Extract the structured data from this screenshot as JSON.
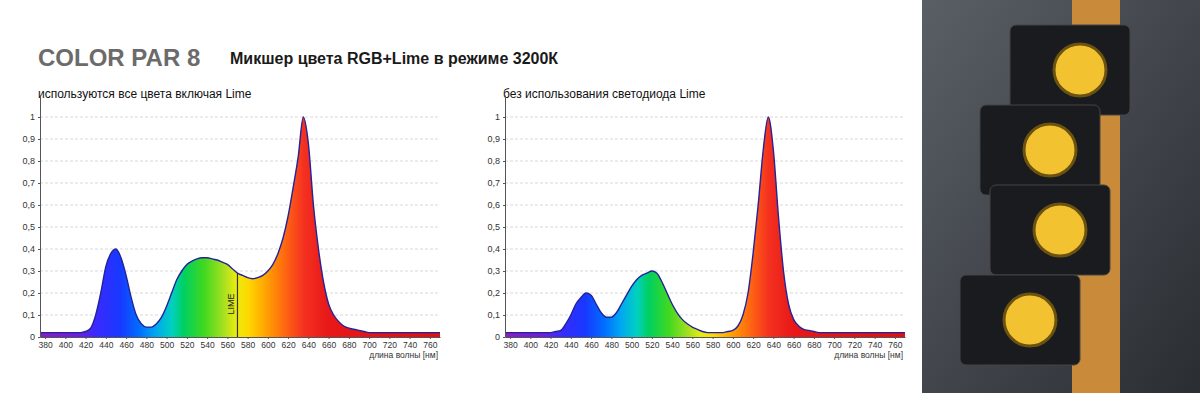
{
  "header": {
    "title": "COLOR PAR 8",
    "subtitle": "Микшер цвета RGB+Lime в режиме 3200К"
  },
  "chart_data": [
    {
      "type": "area",
      "title": "используются все цвета включая Lime",
      "x_label": "длина волны [нм]",
      "x": [
        375,
        380,
        385,
        390,
        395,
        400,
        405,
        410,
        415,
        420,
        425,
        430,
        435,
        440,
        445,
        450,
        455,
        460,
        465,
        470,
        475,
        480,
        485,
        490,
        495,
        500,
        505,
        510,
        515,
        520,
        525,
        530,
        535,
        540,
        545,
        550,
        555,
        560,
        565,
        570,
        575,
        580,
        585,
        590,
        595,
        600,
        605,
        610,
        615,
        620,
        625,
        630,
        635,
        640,
        645,
        650,
        655,
        660,
        665,
        670,
        675,
        680,
        685,
        690,
        695,
        700,
        705,
        710,
        715,
        720,
        725,
        730,
        735,
        740,
        745,
        750,
        755,
        760,
        765,
        770
      ],
      "series": [
        {
          "color": "spectrum",
          "values": [
            0.02,
            0.02,
            0.02,
            0.02,
            0.02,
            0.02,
            0.02,
            0.02,
            0.02,
            0.025,
            0.04,
            0.1,
            0.2,
            0.32,
            0.38,
            0.4,
            0.36,
            0.28,
            0.18,
            0.1,
            0.06,
            0.045,
            0.045,
            0.06,
            0.09,
            0.14,
            0.2,
            0.26,
            0.3,
            0.33,
            0.345,
            0.355,
            0.36,
            0.36,
            0.355,
            0.35,
            0.34,
            0.33,
            0.31,
            0.29,
            0.28,
            0.27,
            0.265,
            0.27,
            0.28,
            0.3,
            0.33,
            0.38,
            0.45,
            0.55,
            0.68,
            0.82,
            1.0,
            0.88,
            0.6,
            0.4,
            0.25,
            0.15,
            0.1,
            0.07,
            0.05,
            0.04,
            0.035,
            0.03,
            0.025,
            0.02,
            0.02,
            0.02,
            0.02,
            0.02,
            0.02,
            0.02,
            0.02,
            0.02,
            0.02,
            0.02,
            0.02,
            0.02,
            0.02,
            0.02
          ]
        }
      ],
      "annotations": [
        {
          "text": "LIME",
          "x": 570
        }
      ],
      "xlim": [
        375,
        770
      ],
      "xticks": [
        380,
        400,
        420,
        440,
        460,
        480,
        500,
        520,
        540,
        560,
        580,
        600,
        620,
        640,
        660,
        680,
        700,
        720,
        740,
        760
      ],
      "ylim": [
        0,
        1.1
      ],
      "yticks": [
        0,
        {
          "value": 0.1,
          "label": "0,1"
        },
        {
          "value": 0.2,
          "label": "0,2"
        },
        {
          "value": 0.3,
          "label": "0,3"
        },
        {
          "value": 0.4,
          "label": "0,4"
        },
        {
          "value": 0.5,
          "label": "0,5"
        },
        {
          "value": 0.6,
          "label": "0,6"
        },
        {
          "value": 0.7,
          "label": "0,7"
        },
        {
          "value": 0.8,
          "label": "0,8"
        },
        {
          "value": 0.9,
          "label": "0,9"
        },
        1
      ],
      "grid": true
    },
    {
      "type": "area",
      "title": "без использования светодиода Lime",
      "x_label": "длина волны [нм]",
      "x": [
        375,
        380,
        385,
        390,
        395,
        400,
        405,
        410,
        415,
        420,
        425,
        430,
        435,
        440,
        445,
        450,
        455,
        460,
        465,
        470,
        475,
        480,
        485,
        490,
        495,
        500,
        505,
        510,
        515,
        520,
        525,
        530,
        535,
        540,
        545,
        550,
        555,
        560,
        565,
        570,
        575,
        580,
        585,
        590,
        595,
        600,
        605,
        610,
        615,
        620,
        625,
        630,
        635,
        640,
        645,
        650,
        655,
        660,
        665,
        670,
        675,
        680,
        685,
        690,
        695,
        700,
        705,
        710,
        715,
        720,
        725,
        730,
        735,
        740,
        745,
        750,
        755,
        760,
        765,
        770
      ],
      "series": [
        {
          "color": "spectrum",
          "values": [
            0.02,
            0.02,
            0.02,
            0.02,
            0.02,
            0.02,
            0.02,
            0.02,
            0.02,
            0.02,
            0.025,
            0.03,
            0.06,
            0.1,
            0.15,
            0.18,
            0.2,
            0.19,
            0.15,
            0.11,
            0.09,
            0.09,
            0.11,
            0.15,
            0.19,
            0.23,
            0.26,
            0.28,
            0.29,
            0.3,
            0.29,
            0.25,
            0.2,
            0.15,
            0.11,
            0.08,
            0.06,
            0.045,
            0.035,
            0.025,
            0.02,
            0.02,
            0.02,
            0.02,
            0.025,
            0.03,
            0.05,
            0.1,
            0.2,
            0.38,
            0.6,
            0.85,
            1.0,
            0.85,
            0.55,
            0.3,
            0.15,
            0.08,
            0.05,
            0.035,
            0.03,
            0.025,
            0.02,
            0.02,
            0.02,
            0.02,
            0.02,
            0.02,
            0.02,
            0.02,
            0.02,
            0.02,
            0.02,
            0.02,
            0.02,
            0.02,
            0.02,
            0.02,
            0.02,
            0.02
          ]
        }
      ],
      "xlim": [
        375,
        770
      ],
      "xticks": [
        380,
        400,
        420,
        440,
        460,
        480,
        500,
        520,
        540,
        560,
        580,
        600,
        620,
        640,
        660,
        680,
        700,
        720,
        740,
        760
      ],
      "ylim": [
        0,
        1.1
      ],
      "yticks": [
        0,
        {
          "value": 0.1,
          "label": "0,1"
        },
        {
          "value": 0.2,
          "label": "0,2"
        },
        {
          "value": 0.3,
          "label": "0,3"
        },
        {
          "value": 0.4,
          "label": "0,4"
        },
        {
          "value": 0.5,
          "label": "0,5"
        },
        {
          "value": 0.6,
          "label": "0,6"
        },
        {
          "value": 0.7,
          "label": "0,7"
        },
        {
          "value": 0.8,
          "label": "0,8"
        },
        {
          "value": 0.9,
          "label": "0,9"
        },
        1
      ],
      "grid": true
    }
  ]
}
